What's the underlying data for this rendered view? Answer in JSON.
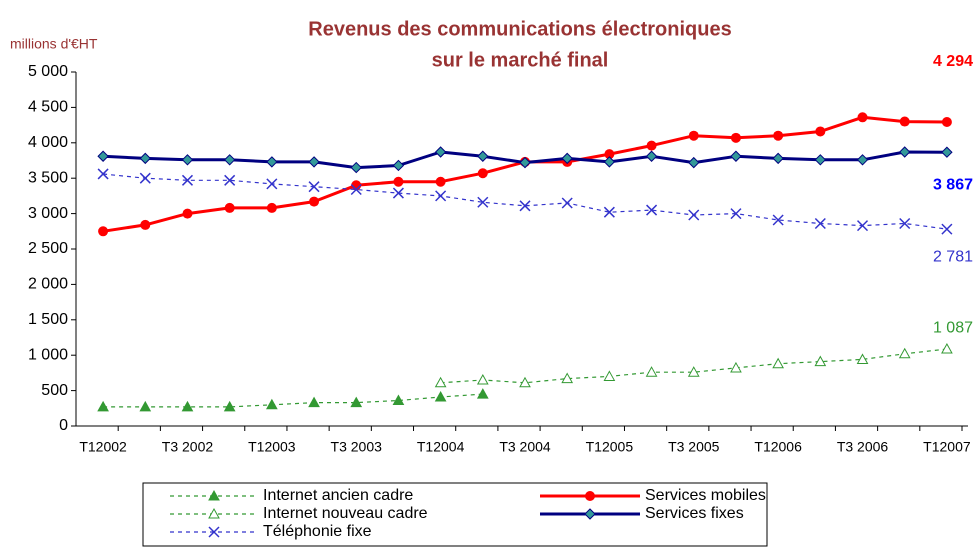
{
  "chart_data": {
    "type": "line",
    "title": [
      "Revenus des communications électroniques",
      "sur le marché final"
    ],
    "y_label": "millions d'€HT",
    "categories": [
      "T12002",
      null,
      "T3 2002",
      null,
      "T12003",
      null,
      "T3 2003",
      null,
      "T12004",
      null,
      "T3 2004",
      null,
      "T12005",
      null,
      "T3 2005",
      null,
      "T12006",
      null,
      "T3 2006",
      null,
      "T12007"
    ],
    "ylim": [
      0,
      5000
    ],
    "yticks": [
      0,
      500,
      {
        "value": 1000,
        "label": "1 000"
      },
      {
        "value": 1500,
        "label": "1 500"
      },
      {
        "value": 2000,
        "label": "2 000"
      },
      {
        "value": 2500,
        "label": "2 500"
      },
      {
        "value": 3000,
        "label": "3 000"
      },
      {
        "value": 3500,
        "label": "3 500"
      },
      {
        "value": 4000,
        "label": "4 000"
      },
      {
        "value": 4500,
        "label": "4 500"
      },
      {
        "value": 5000,
        "label": "5 000"
      }
    ],
    "grid": false,
    "series": [
      {
        "name": "Internet ancien cadre",
        "color": "#339933",
        "marker": "triangle-filled",
        "dashed": true,
        "values": [
          270,
          270,
          270,
          270,
          300,
          330,
          330,
          360,
          410,
          450,
          null,
          null,
          null,
          null,
          null,
          null,
          null,
          null,
          null,
          null,
          null
        ]
      },
      {
        "name": "Services mobiles",
        "color": "#ff0000",
        "marker": "circle",
        "dashed": false,
        "values": [
          2750,
          2840,
          3000,
          3080,
          3080,
          3170,
          3400,
          3450,
          3450,
          3570,
          3730,
          3730,
          3840,
          3960,
          4100,
          4070,
          4100,
          4160,
          4360,
          4300,
          4294
        ],
        "value_labels": [
          null,
          null,
          null,
          null,
          null,
          null,
          null,
          null,
          null,
          null,
          null,
          null,
          null,
          null,
          null,
          null,
          null,
          null,
          null,
          null,
          "4 294"
        ],
        "label_color": "#ff0000"
      },
      {
        "name": "Internet nouveau cadre",
        "color": "#339933",
        "marker": "triangle-open",
        "dashed": true,
        "values": [
          null,
          null,
          null,
          null,
          null,
          null,
          null,
          null,
          610,
          650,
          610,
          670,
          700,
          760,
          760,
          820,
          880,
          910,
          940,
          1020,
          1087
        ],
        "value_labels": [
          null,
          null,
          null,
          null,
          null,
          null,
          null,
          null,
          null,
          null,
          null,
          null,
          null,
          null,
          null,
          null,
          null,
          null,
          null,
          null,
          "1 087"
        ],
        "label_color": "#339933"
      },
      {
        "name": "Services fixes",
        "color": "#000080",
        "marker": "diamond",
        "dashed": false,
        "values": [
          3810,
          3780,
          3760,
          3760,
          3730,
          3730,
          3650,
          3680,
          3870,
          3810,
          3720,
          3780,
          3730,
          3810,
          3720,
          3810,
          3780,
          3760,
          3760,
          3870,
          3867
        ],
        "value_labels": [
          null,
          null,
          null,
          null,
          null,
          null,
          null,
          null,
          null,
          null,
          null,
          null,
          null,
          null,
          null,
          null,
          null,
          null,
          null,
          null,
          "3 867"
        ],
        "label_color": "#0000ff"
      },
      {
        "name": "Téléphonie fixe",
        "color": "#3333cc",
        "marker": "x",
        "dashed": true,
        "values": [
          3560,
          3500,
          3470,
          3470,
          3420,
          3380,
          3340,
          3290,
          3250,
          3160,
          3110,
          3150,
          3020,
          3050,
          2980,
          3000,
          2910,
          2860,
          2830,
          2860,
          2781
        ],
        "value_labels": [
          null,
          null,
          null,
          null,
          null,
          null,
          null,
          null,
          null,
          null,
          null,
          null,
          null,
          null,
          null,
          null,
          null,
          null,
          null,
          null,
          "2 781"
        ],
        "label_color": "#3333cc"
      }
    ]
  }
}
